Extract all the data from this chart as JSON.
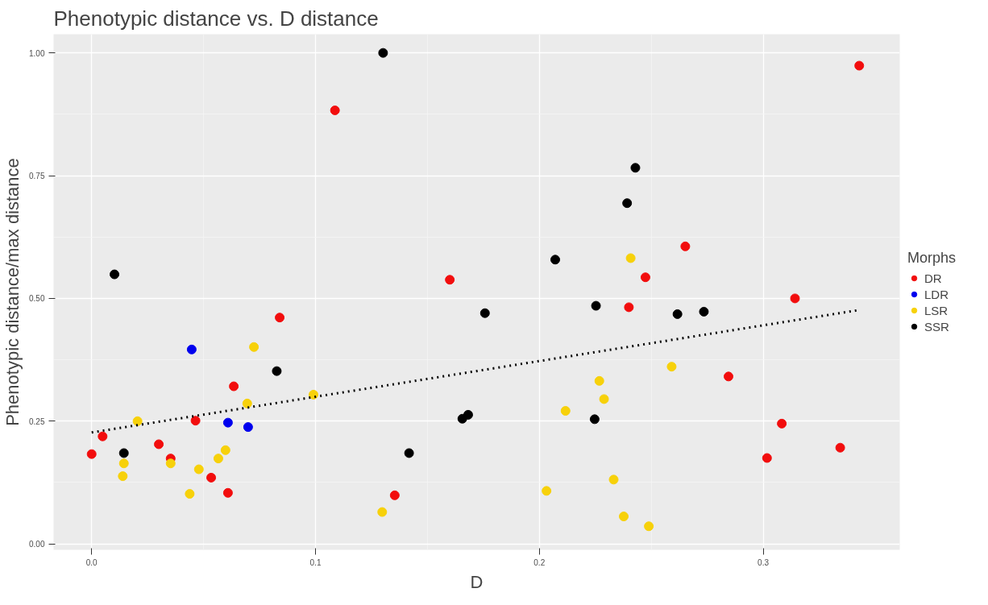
{
  "chart_data": {
    "type": "scatter",
    "title": "Phenotypic distance vs. D distance",
    "xlabel": "D",
    "ylabel": "Phenotypic distance/max distance",
    "legend_title": "Morphs",
    "xlim": [
      -0.017,
      0.361
    ],
    "ylim": [
      -0.012,
      1.038
    ],
    "xticks": [
      {
        "value": 0,
        "label": "0.0"
      },
      {
        "value": 0.1,
        "label": "0.1"
      },
      {
        "value": 0.2,
        "label": "0.2"
      },
      {
        "value": 0.3,
        "label": "0.3"
      }
    ],
    "yticks": [
      {
        "value": 0,
        "label": "0.00"
      },
      {
        "value": 0.25,
        "label": "0.25"
      },
      {
        "value": 0.5,
        "label": "0.50"
      },
      {
        "value": 0.75,
        "label": "0.75"
      },
      {
        "value": 1,
        "label": "1.00"
      }
    ],
    "grid": true,
    "legend": "right",
    "marker": "circle",
    "series": [
      {
        "name": "DR",
        "color": "#f20d0d",
        "x": [
          0,
          0.0049,
          0.03,
          0.0353,
          0.0464,
          0.0534,
          0.0609,
          0.0635,
          0.084,
          0.1087,
          0.1354,
          0.16,
          0.3429,
          0.2652,
          0.2474,
          0.24,
          0.3142,
          0.2845,
          0.3083,
          0.3017,
          0.3344
        ],
        "values": [
          0.183,
          0.219,
          0.203,
          0.174,
          0.251,
          0.135,
          0.104,
          0.321,
          0.461,
          0.883,
          0.099,
          0.538,
          0.974,
          0.606,
          0.543,
          0.482,
          0.5,
          0.341,
          0.245,
          0.175,
          0.196
        ]
      },
      {
        "name": "LDR",
        "color": "#0000ee",
        "x": [
          0.0447,
          0.0609,
          0.0699
        ],
        "values": [
          0.396,
          0.247,
          0.238
        ]
      },
      {
        "name": "LSR",
        "color": "#f7d10a",
        "x": [
          0.0205,
          0.0144,
          0.0139,
          0.0353,
          0.0438,
          0.0479,
          0.0566,
          0.0598,
          0.0695,
          0.0725,
          0.0991,
          0.1298,
          0.2408,
          0.2591,
          0.2268,
          0.2289,
          0.2117,
          0.2332,
          0.2032,
          0.2377,
          0.2489
        ],
        "values": [
          0.25,
          0.164,
          0.138,
          0.164,
          0.102,
          0.152,
          0.174,
          0.191,
          0.286,
          0.401,
          0.304,
          0.065,
          0.582,
          0.361,
          0.332,
          0.295,
          0.271,
          0.131,
          0.108,
          0.056,
          0.036
        ]
      },
      {
        "name": "SSR",
        "color": "#000000",
        "x": [
          0.0102,
          0.0144,
          0.0827,
          0.1302,
          0.1418,
          0.1656,
          0.1682,
          0.1757,
          0.2429,
          0.2392,
          0.2071,
          0.2253,
          0.2617,
          0.2735,
          0.2247
        ],
        "values": [
          0.549,
          0.185,
          0.352,
          1.0,
          0.185,
          0.255,
          0.263,
          0.47,
          0.766,
          0.694,
          0.579,
          0.485,
          0.468,
          0.473,
          0.254
        ]
      },
      {
        "type": "line",
        "color": "#000000",
        "line_style": "dotted",
        "marker": "none",
        "x": [
          0,
          0.3424
        ],
        "values": [
          0.227,
          0.476
        ]
      }
    ]
  }
}
